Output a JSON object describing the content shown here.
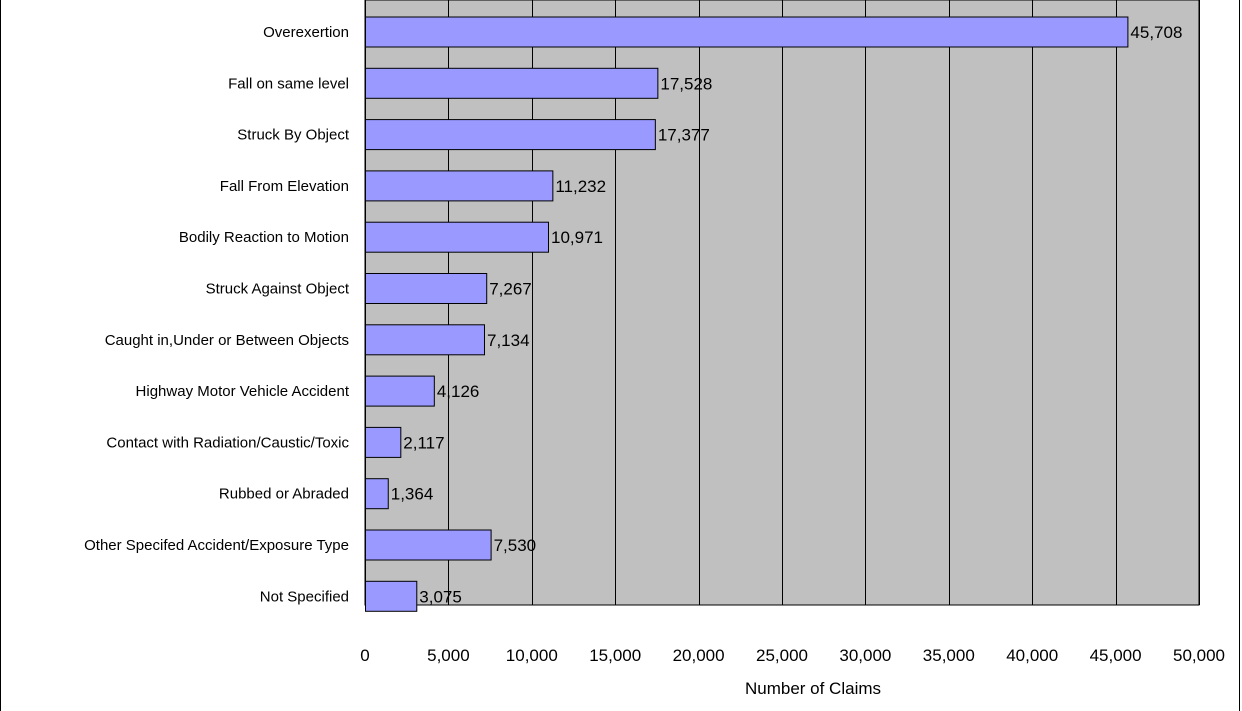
{
  "chart_data": {
    "type": "bar",
    "orientation": "horizontal",
    "categories": [
      "Overexertion",
      "Fall on same level",
      "Struck By Object",
      "Fall From Elevation",
      "Bodily Reaction to Motion",
      "Struck Against Object",
      "Caught in,Under or Between Objects",
      "Highway Motor Vehicle Accident",
      "Contact with Radiation/Caustic/Toxic",
      "Rubbed or Abraded",
      "Other Specifed Accident/Exposure Type",
      "Not Specified"
    ],
    "values": [
      45708,
      17528,
      17377,
      11232,
      10971,
      7267,
      7134,
      4126,
      2117,
      1364,
      7530,
      3075
    ],
    "data_labels": [
      "45,708",
      "17,528",
      "17,377",
      "11,232",
      "10,971",
      "7,267",
      "7,134",
      "4,126",
      "2,117",
      "1,364",
      "7,530",
      "3,075"
    ],
    "x_ticks": [
      0,
      5000,
      10000,
      15000,
      20000,
      25000,
      30000,
      35000,
      40000,
      45000,
      50000
    ],
    "x_tick_labels": [
      "0",
      "5,000",
      "10,000",
      "15,000",
      "20,000",
      "25,000",
      "30,000",
      "35,000",
      "40,000",
      "45,000",
      "50,000"
    ],
    "xlabel": "Number of Claims",
    "ylabel": "",
    "title": "",
    "xlim": [
      0,
      50000
    ],
    "grid": "vertical",
    "colors": {
      "bar_fill": "#9999ff",
      "bar_stroke": "#000000",
      "plot_background": "#c0c0c0",
      "gridline": "#000000"
    }
  }
}
